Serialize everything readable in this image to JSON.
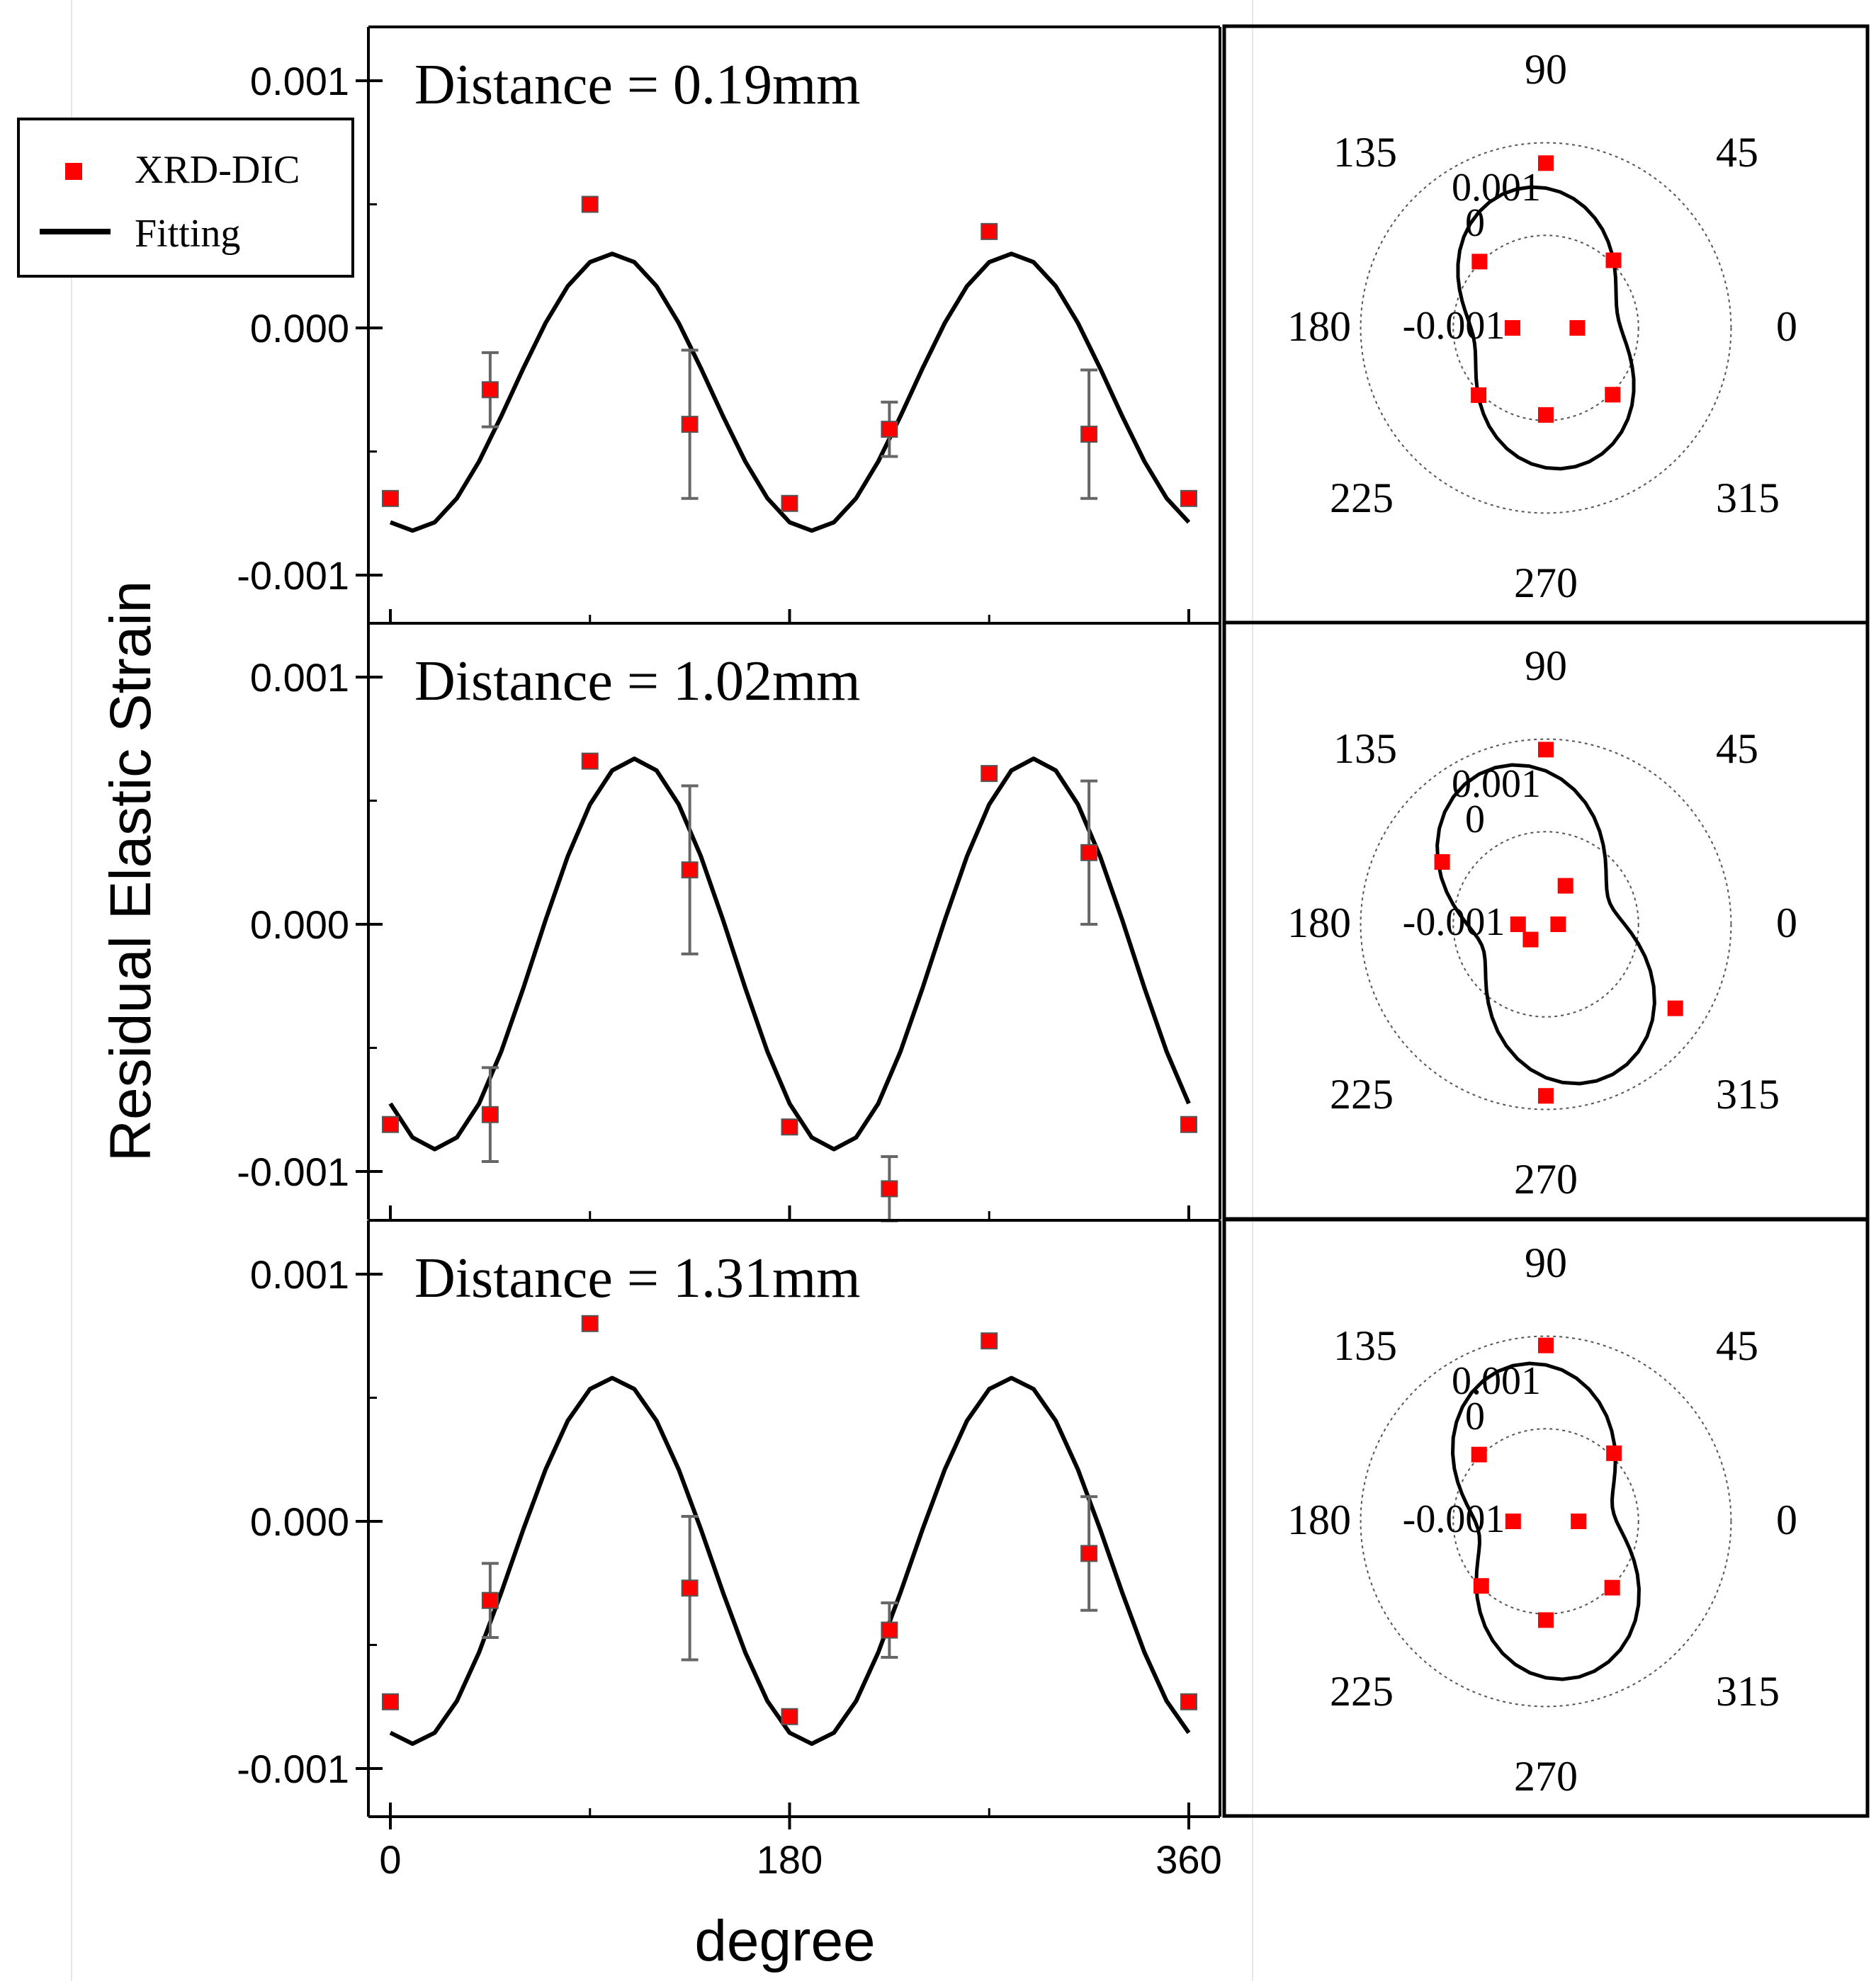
{
  "chart_data": {
    "type": "scatter",
    "ylabel": "Residual Elastic Strain",
    "xlabel": "degree",
    "legend": {
      "placement": "top-left",
      "entries": [
        {
          "name": "XRD-DIC",
          "marker": "red-square"
        },
        {
          "name": "Fitting",
          "marker": "black-line"
        }
      ]
    },
    "xlim": [
      -10,
      370
    ],
    "ylim": [
      -0.0012,
      0.00123
    ],
    "xticks": [
      {
        "v": 0,
        "label": "0"
      },
      {
        "v": 180,
        "label": "180"
      },
      {
        "v": 360,
        "label": "360"
      }
    ],
    "yticks": [
      {
        "v": 0.001,
        "label": "0.001"
      },
      {
        "v": 0,
        "label": "0.000"
      },
      {
        "v": -0.001,
        "label": "-0.001"
      }
    ],
    "polar_labels": {
      "angles": [
        {
          "deg": 90,
          "label": "90"
        },
        {
          "deg": 45,
          "label": "45"
        },
        {
          "deg": 135,
          "label": "135"
        },
        {
          "deg": 0,
          "label": "0"
        },
        {
          "deg": 180,
          "label": "180"
        },
        {
          "deg": 225,
          "label": "225"
        },
        {
          "deg": 270,
          "label": "270"
        },
        {
          "deg": 315,
          "label": "315"
        }
      ],
      "rings": [
        {
          "v": 0.001,
          "label": "0.001"
        },
        {
          "v": 0,
          "label": "0"
        },
        {
          "v": -0.001,
          "label": "-0.001"
        }
      ],
      "r_min": -0.002,
      "r_max": 0.0015
    },
    "panels": [
      {
        "title": "Distance = 0.19mm",
        "points": [
          {
            "x": 0,
            "y": -0.00069,
            "err": 1e-05
          },
          {
            "x": 45,
            "y": -0.00025,
            "err": 0.00015
          },
          {
            "x": 90,
            "y": 0.0005,
            "err": 1e-05
          },
          {
            "x": 135,
            "y": -0.00039,
            "err": 0.0003
          },
          {
            "x": 180,
            "y": -0.00071,
            "err": 1e-05
          },
          {
            "x": 225,
            "y": -0.00041,
            "err": 0.00011
          },
          {
            "x": 270,
            "y": 0.00039,
            "err": 1e-05
          },
          {
            "x": 315,
            "y": -0.00043,
            "err": 0.00026
          },
          {
            "x": 360,
            "y": -0.00069,
            "err": 1e-05
          }
        ],
        "fit": {
          "offset": -0.00026,
          "amplitude": 0.00056,
          "phase": 10,
          "period": 180
        },
        "polar_points": [
          {
            "angle": 90,
            "r": 0.00067
          },
          {
            "angle": 45,
            "r": -0.00045
          },
          {
            "angle": 135,
            "r": -0.00048
          },
          {
            "angle": 0,
            "r": -0.00149
          },
          {
            "angle": 180,
            "r": -0.00146
          },
          {
            "angle": 225,
            "r": -0.00046
          },
          {
            "angle": 270,
            "r": -0.00059
          },
          {
            "angle": 315,
            "r": -0.00047
          }
        ]
      },
      {
        "title": "Distance = 1.02mm",
        "points": [
          {
            "x": 0,
            "y": -0.00081,
            "err": 1e-05
          },
          {
            "x": 45,
            "y": -0.00077,
            "err": 0.00019
          },
          {
            "x": 90,
            "y": 0.00066,
            "err": 1e-05
          },
          {
            "x": 135,
            "y": 0.00022,
            "err": 0.00034
          },
          {
            "x": 180,
            "y": -0.00082,
            "err": 1e-05
          },
          {
            "x": 225,
            "y": -0.00107,
            "err": 0.00013
          },
          {
            "x": 270,
            "y": 0.00061,
            "err": 1e-05
          },
          {
            "x": 315,
            "y": 0.00029,
            "err": 0.00029
          },
          {
            "x": 360,
            "y": -0.00081,
            "err": 1e-05
          }
        ],
        "fit": {
          "offset": -0.00012,
          "amplitude": 0.00079,
          "phase": 20,
          "period": 180
        },
        "polar_points": [
          {
            "angle": 90,
            "r": 0.00083
          },
          {
            "angle": 149,
            "r": -4e-05
          },
          {
            "angle": 63,
            "r": -0.0013
          },
          {
            "angle": 0,
            "r": -0.0018
          },
          {
            "angle": 180,
            "r": -0.00155
          },
          {
            "angle": 225,
            "r": -0.00165
          },
          {
            "angle": 270,
            "r": 0.00078
          },
          {
            "angle": 327,
            "r": 0.0005
          }
        ]
      },
      {
        "title": "Distance = 1.31mm",
        "points": [
          {
            "x": 0,
            "y": -0.00073,
            "err": 1e-05
          },
          {
            "x": 45,
            "y": -0.00032,
            "err": 0.00015
          },
          {
            "x": 90,
            "y": 0.0008,
            "err": 1e-05
          },
          {
            "x": 135,
            "y": -0.00027,
            "err": 0.00029
          },
          {
            "x": 180,
            "y": -0.00079,
            "err": 1e-05
          },
          {
            "x": 225,
            "y": -0.00044,
            "err": 0.00011
          },
          {
            "x": 270,
            "y": 0.00073,
            "err": 1e-05
          },
          {
            "x": 315,
            "y": -0.00013,
            "err": 0.00023
          },
          {
            "x": 360,
            "y": -0.00073,
            "err": 1e-05
          }
        ],
        "fit": {
          "offset": -0.00016,
          "amplitude": 0.00074,
          "phase": 10,
          "period": 180
        },
        "polar_points": [
          {
            "angle": 90,
            "r": 0.00085
          },
          {
            "angle": 45,
            "r": -0.00044
          },
          {
            "angle": 135,
            "r": -0.00047
          },
          {
            "angle": 0,
            "r": -0.00147
          },
          {
            "angle": 180,
            "r": -0.00147
          },
          {
            "angle": 225,
            "r": -0.00052
          },
          {
            "angle": 270,
            "r": -0.0004
          },
          {
            "angle": 315,
            "r": -0.00048
          }
        ]
      }
    ]
  }
}
